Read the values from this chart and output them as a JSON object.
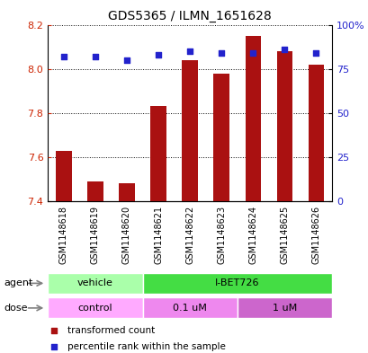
{
  "title": "GDS5365 / ILMN_1651628",
  "samples": [
    "GSM1148618",
    "GSM1148619",
    "GSM1148620",
    "GSM1148621",
    "GSM1148622",
    "GSM1148623",
    "GSM1148624",
    "GSM1148625",
    "GSM1148626"
  ],
  "transformed_counts": [
    7.63,
    7.49,
    7.48,
    7.83,
    8.04,
    7.98,
    8.15,
    8.08,
    8.02
  ],
  "percentile_ranks": [
    82,
    82,
    80,
    83,
    85,
    84,
    84,
    86,
    84
  ],
  "ylim_left": [
    7.4,
    8.2
  ],
  "ylim_right": [
    0,
    100
  ],
  "yticks_left": [
    7.4,
    7.6,
    7.8,
    8.0,
    8.2
  ],
  "yticks_right": [
    0,
    25,
    50,
    75,
    100
  ],
  "ytick_labels_right": [
    "0",
    "25",
    "50",
    "75",
    "100%"
  ],
  "bar_color": "#aa1111",
  "dot_color": "#2222cc",
  "agent_groups": [
    {
      "label": "vehicle",
      "start": 0,
      "end": 3,
      "color": "#aaffaa"
    },
    {
      "label": "I-BET726",
      "start": 3,
      "end": 9,
      "color": "#44dd44"
    }
  ],
  "dose_groups": [
    {
      "label": "control",
      "start": 0,
      "end": 3,
      "color": "#ffaaff"
    },
    {
      "label": "0.1 uM",
      "start": 3,
      "end": 6,
      "color": "#ee88ee"
    },
    {
      "label": "1 uM",
      "start": 6,
      "end": 9,
      "color": "#cc66cc"
    }
  ],
  "legend_items": [
    {
      "label": "transformed count",
      "color": "#aa1111",
      "marker": "s"
    },
    {
      "label": "percentile rank within the sample",
      "color": "#2222cc",
      "marker": "s"
    }
  ],
  "grid_color": "#000000",
  "background_color": "#ffffff",
  "plot_bg_color": "#ffffff",
  "bar_bottom": 7.4
}
